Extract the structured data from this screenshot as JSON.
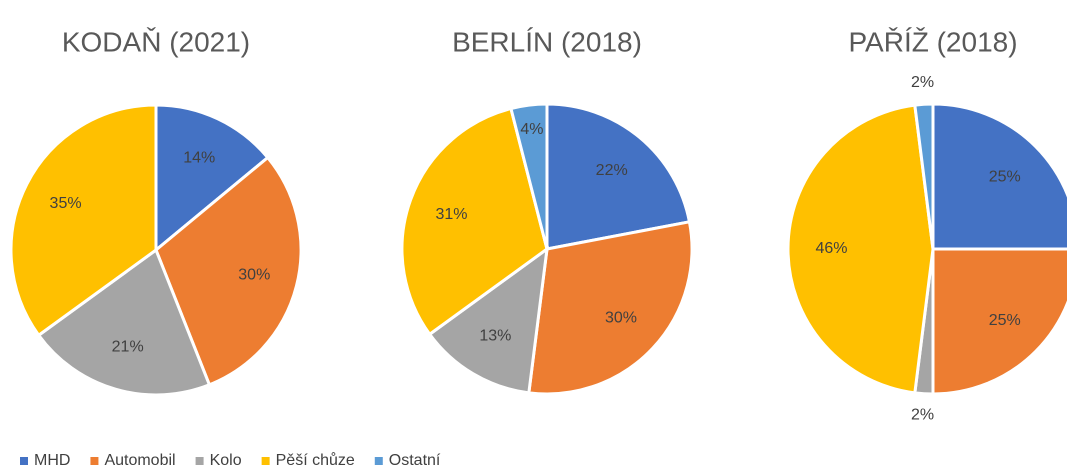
{
  "chart_data": [
    {
      "type": "pie",
      "title": "KODAŇ (2021)",
      "categories": [
        "MHD",
        "Automobil",
        "Kolo",
        "Pěší chůze"
      ],
      "values": [
        14,
        30,
        21,
        35
      ],
      "value_labels": [
        "14%",
        "30%",
        "21%",
        "35%"
      ],
      "colors": [
        "#4472c4",
        "#ed7d31",
        "#a5a5a5",
        "#ffc000"
      ]
    },
    {
      "type": "pie",
      "title": "BERLÍN (2018)",
      "categories": [
        "MHD",
        "Automobil",
        "Kolo",
        "Pěší chůze",
        "Ostatní"
      ],
      "values": [
        22,
        30,
        13,
        31,
        4
      ],
      "value_labels": [
        "22%",
        "30%",
        "13%",
        "31%",
        "4%"
      ],
      "colors": [
        "#4472c4",
        "#ed7d31",
        "#a5a5a5",
        "#ffc000",
        "#5b9bd5"
      ],
      "legend": "bottom"
    },
    {
      "type": "pie",
      "title": "PAŘÍŽ (2018)",
      "categories": [
        "MHD",
        "Automobil",
        "Kolo",
        "Pěší chůze",
        "Ostatní"
      ],
      "values": [
        25,
        25,
        2,
        46,
        2
      ],
      "value_labels": [
        "25%",
        "25%",
        "2%",
        "46%",
        "2%"
      ],
      "colors": [
        "#4472c4",
        "#ed7d31",
        "#a5a5a5",
        "#ffc000",
        "#5b9bd5"
      ]
    }
  ]
}
